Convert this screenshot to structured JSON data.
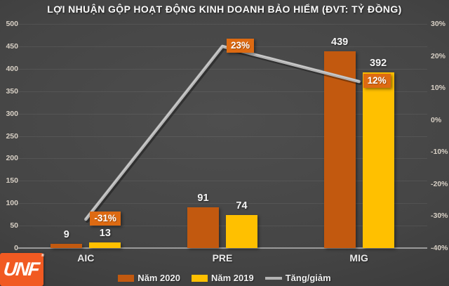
{
  "title": "LỢI NHUẬN GỘP HOẠT ĐỘNG KINH DOANH BẢO HIỂM (ĐVT: TỶ ĐỒNG)",
  "logo": {
    "text": "UNF",
    "registered": "®"
  },
  "colors": {
    "bar_2020": "#c2590f",
    "bar_2019": "#ffc000",
    "trend_line": "#b3b3b3",
    "trend_label_bg": "#dd6a12",
    "axis_text": "#d8d0c5",
    "background": "#454545"
  },
  "chart_data": {
    "type": "bar",
    "subtype": "grouped-bars-with-percent-line",
    "title": "LỢI NHUẬN GỘP HOẠT ĐỘNG KINH DOANH BẢO HIỂM (ĐVT: TỶ ĐỒNG)",
    "categories": [
      "AIC",
      "PRE",
      "MIG"
    ],
    "series": [
      {
        "name": "Năm 2020",
        "type": "bar",
        "axis": "left",
        "color": "#c2590f",
        "values": [
          9,
          91,
          439
        ]
      },
      {
        "name": "Năm 2019",
        "type": "bar",
        "axis": "left",
        "color": "#ffc000",
        "values": [
          13,
          74,
          392
        ]
      },
      {
        "name": "Tăng/giảm",
        "type": "line",
        "axis": "right",
        "color": "#b3b3b3",
        "values": [
          -31,
          23,
          12
        ],
        "point_labels": [
          "-31%",
          "23%",
          "12%"
        ],
        "label_bg": "#dd6a12"
      }
    ],
    "left_axis": {
      "min": 0,
      "max": 500,
      "step": 50,
      "tick_labels": [
        "0",
        "50",
        "100",
        "150",
        "200",
        "250",
        "300",
        "350",
        "400",
        "450",
        "500"
      ]
    },
    "right_axis": {
      "min": -40,
      "max": 30,
      "step": 10,
      "tick_labels": [
        "-40%",
        "-30%",
        "-20%",
        "-10%",
        "0%",
        "10%",
        "20%",
        "30%"
      ]
    },
    "grid": "horizontal",
    "legend_position": "bottom"
  }
}
